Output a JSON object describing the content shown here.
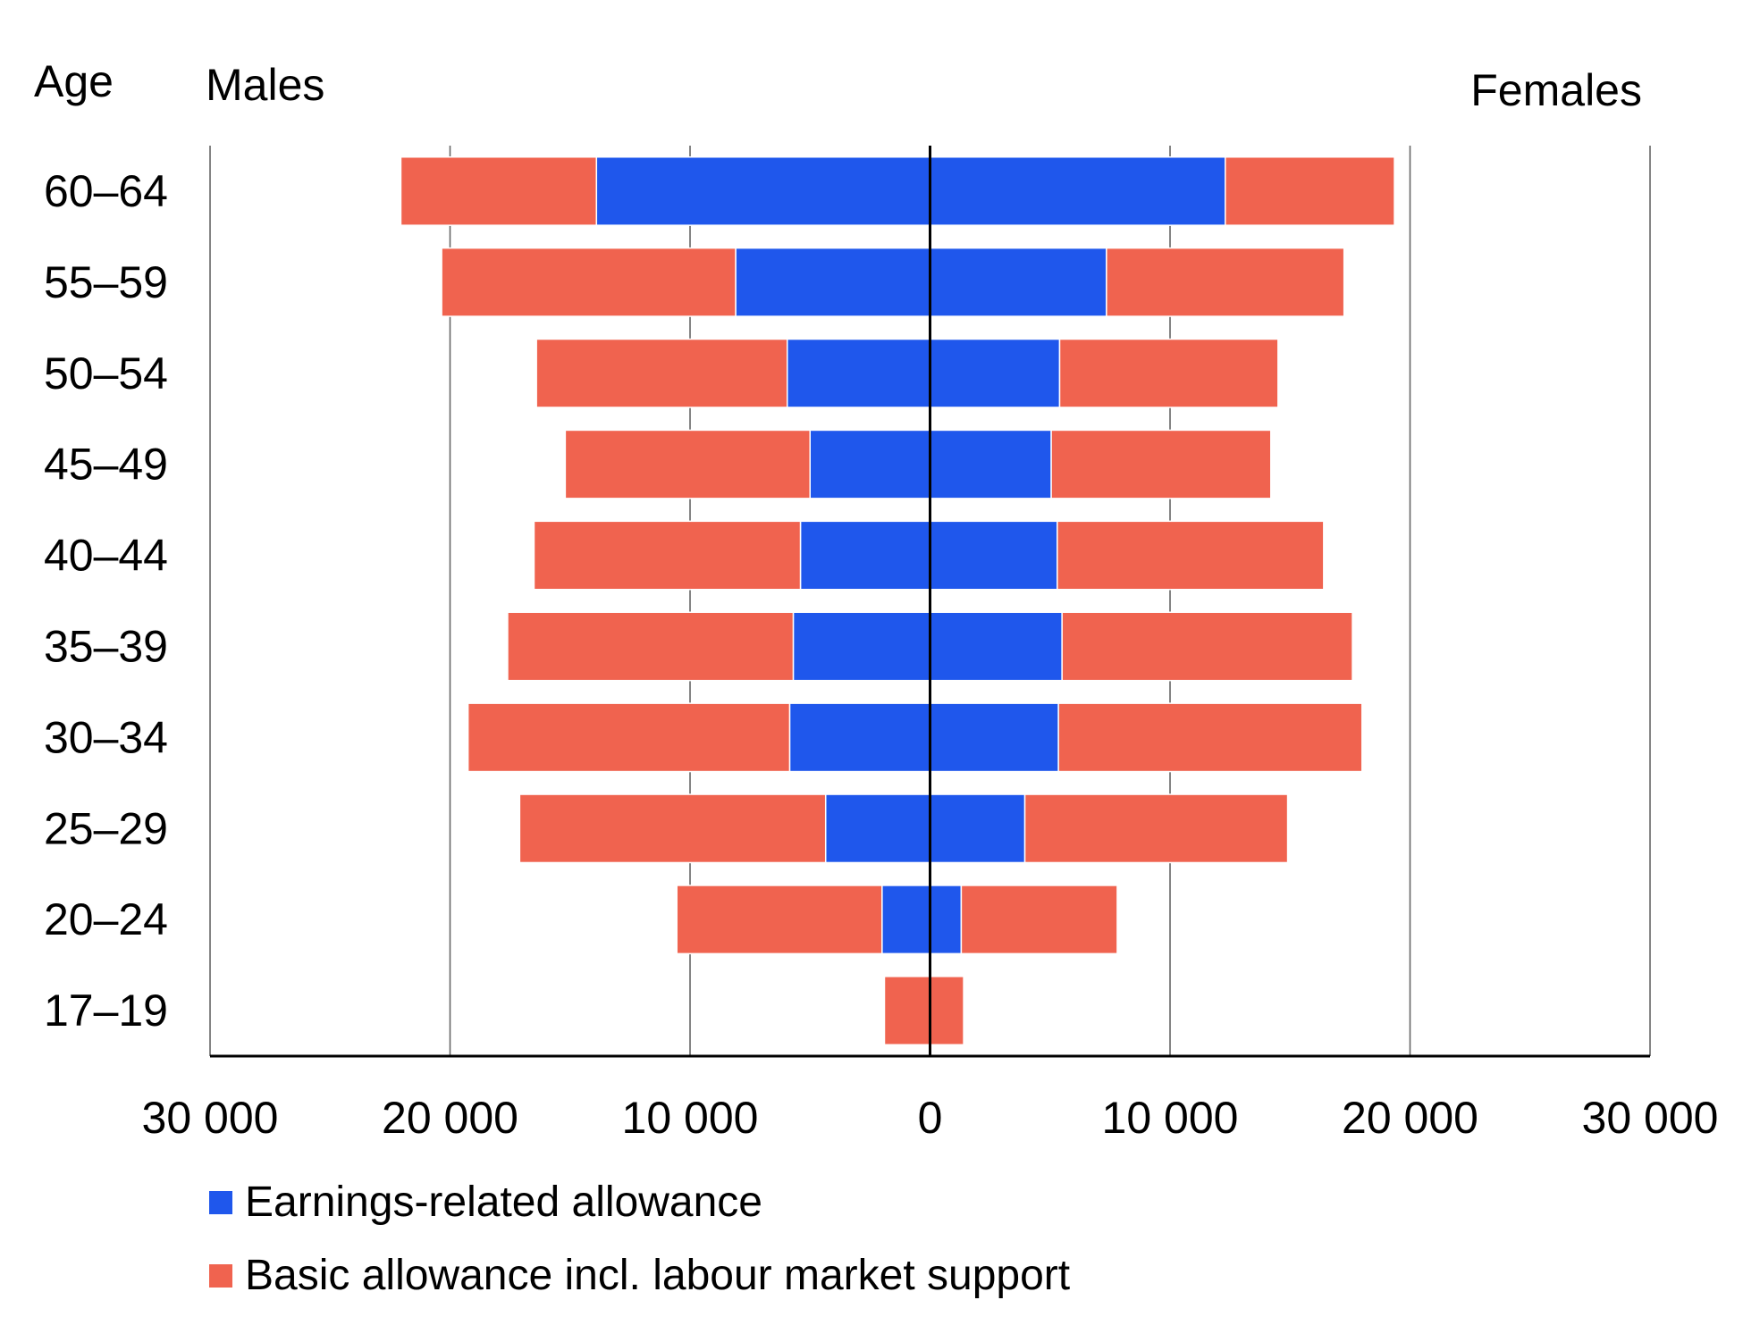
{
  "chart_data": {
    "type": "bar",
    "orientation": "horizontal",
    "layout": "population-pyramid",
    "y_title": "Age",
    "left_title": "Males",
    "right_title": "Females",
    "categories": [
      "60–64",
      "55–59",
      "50–54",
      "45–49",
      "40–44",
      "35–39",
      "30–34",
      "25–29",
      "20–24",
      "17–19"
    ],
    "x_ticks": [
      "30 000",
      "20 000",
      "10 000",
      "0",
      "10 000",
      "20 000",
      "30 000"
    ],
    "xlim": [
      -30000,
      30000
    ],
    "grid": true,
    "legend_position": "bottom-left",
    "series": [
      {
        "name": "Earnings-related allowance",
        "color": "#1f57ec",
        "males": [
          13900,
          8100,
          5950,
          5000,
          5400,
          5700,
          5850,
          4350,
          2000,
          0
        ],
        "females": [
          12300,
          7350,
          5400,
          5050,
          5300,
          5500,
          5350,
          3950,
          1300,
          0
        ]
      },
      {
        "name": "Basic allowance incl. labour market support",
        "color": "#f0634f",
        "males": [
          8150,
          12250,
          10450,
          10200,
          11100,
          11900,
          13400,
          12750,
          8550,
          1900
        ],
        "females": [
          7050,
          9900,
          9100,
          9150,
          11100,
          12100,
          12650,
          10950,
          6500,
          1400
        ]
      }
    ]
  }
}
